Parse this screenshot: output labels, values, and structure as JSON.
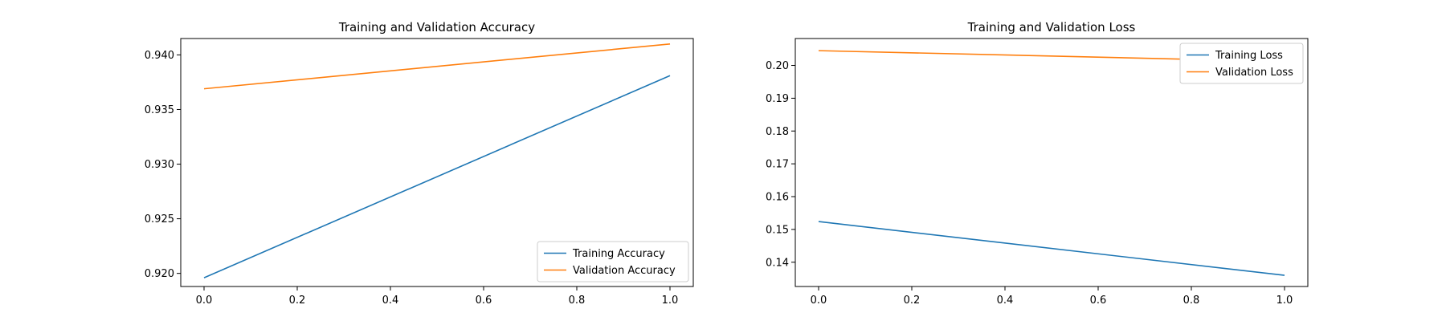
{
  "chart_data": [
    {
      "type": "line",
      "title": "Training and Validation Accuracy",
      "xlabel": "",
      "ylabel": "",
      "xlim": [
        -0.05,
        1.05
      ],
      "ylim": [
        0.9188,
        0.9415
      ],
      "xticks": [
        0.0,
        0.2,
        0.4,
        0.6,
        0.8,
        1.0
      ],
      "xtick_labels": [
        "0.0",
        "0.2",
        "0.4",
        "0.6",
        "0.8",
        "1.0"
      ],
      "yticks": [
        0.92,
        0.925,
        0.93,
        0.935,
        0.94
      ],
      "ytick_labels": [
        "0.920",
        "0.925",
        "0.930",
        "0.935",
        "0.940"
      ],
      "grid": false,
      "legend_position": "lower-right",
      "series": [
        {
          "name": "Training Accuracy",
          "color": "#1f77b4",
          "x": [
            0,
            1
          ],
          "y": [
            0.9196,
            0.9381
          ]
        },
        {
          "name": "Validation Accuracy",
          "color": "#ff7f0e",
          "x": [
            0,
            1
          ],
          "y": [
            0.9369,
            0.941
          ]
        }
      ]
    },
    {
      "type": "line",
      "title": "Training and Validation Loss",
      "xlabel": "",
      "ylabel": "",
      "xlim": [
        -0.05,
        1.05
      ],
      "ylim": [
        0.1326,
        0.2082
      ],
      "xticks": [
        0.0,
        0.2,
        0.4,
        0.6,
        0.8,
        1.0
      ],
      "xtick_labels": [
        "0.0",
        "0.2",
        "0.4",
        "0.6",
        "0.8",
        "1.0"
      ],
      "yticks": [
        0.14,
        0.15,
        0.16,
        0.17,
        0.18,
        0.19,
        0.2
      ],
      "ytick_labels": [
        "0.14",
        "0.15",
        "0.16",
        "0.17",
        "0.18",
        "0.19",
        "0.20"
      ],
      "grid": false,
      "legend_position": "upper-right",
      "series": [
        {
          "name": "Training Loss",
          "color": "#1f77b4",
          "x": [
            0,
            1
          ],
          "y": [
            0.1524,
            0.136
          ]
        },
        {
          "name": "Validation Loss",
          "color": "#ff7f0e",
          "x": [
            0,
            1
          ],
          "y": [
            0.2045,
            0.2012
          ]
        }
      ]
    }
  ]
}
